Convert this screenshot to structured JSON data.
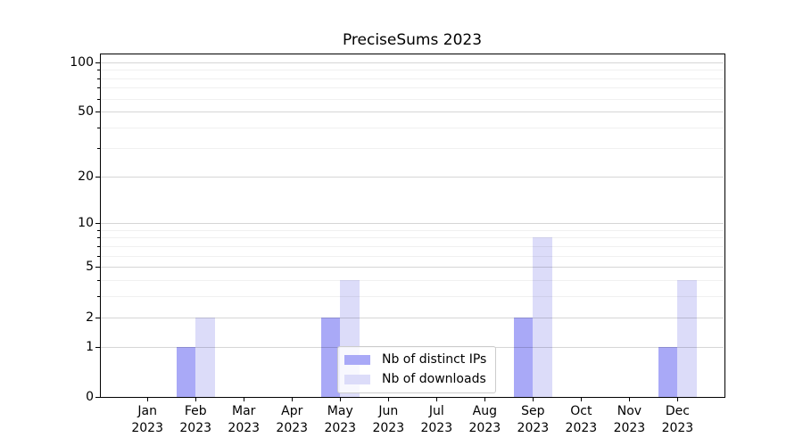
{
  "chart_data": {
    "type": "bar",
    "title": "PreciseSums 2023",
    "year_label": "2023",
    "categories": [
      "Jan",
      "Feb",
      "Mar",
      "Apr",
      "May",
      "Jun",
      "Jul",
      "Aug",
      "Sep",
      "Oct",
      "Nov",
      "Dec"
    ],
    "series": [
      {
        "name": "Nb of distinct IPs",
        "color": "#a9a9f7",
        "values": [
          0,
          1,
          0,
          0,
          2,
          0,
          0,
          0,
          2,
          0,
          0,
          1
        ]
      },
      {
        "name": "Nb of downloads",
        "color": "#dcdcf9",
        "values": [
          0,
          2,
          0,
          0,
          4,
          0,
          0,
          0,
          8,
          0,
          0,
          4
        ]
      }
    ],
    "xlabel": "",
    "ylabel": "",
    "yscale": "log1p",
    "ylim": [
      0,
      113
    ],
    "yticks": [
      0,
      1,
      2,
      5,
      10,
      20,
      50,
      100
    ],
    "minor_yticks": [
      3,
      4,
      6,
      7,
      8,
      9,
      30,
      40,
      60,
      70,
      80,
      90
    ],
    "grid": true,
    "legend": {
      "position": "lower center",
      "entries": [
        "Nb of distinct IPs",
        "Nb of downloads"
      ]
    }
  },
  "colors": {
    "bar_distinct_ips": "#a9a9f7",
    "bar_downloads": "#dcdcf9",
    "grid_major": "rgba(0,0,0,0.16)",
    "grid_minor": "rgba(0,0,0,0.06)",
    "spine": "#000000",
    "legend_border": "#cccccc",
    "background": "#ffffff",
    "text": "#000000"
  }
}
